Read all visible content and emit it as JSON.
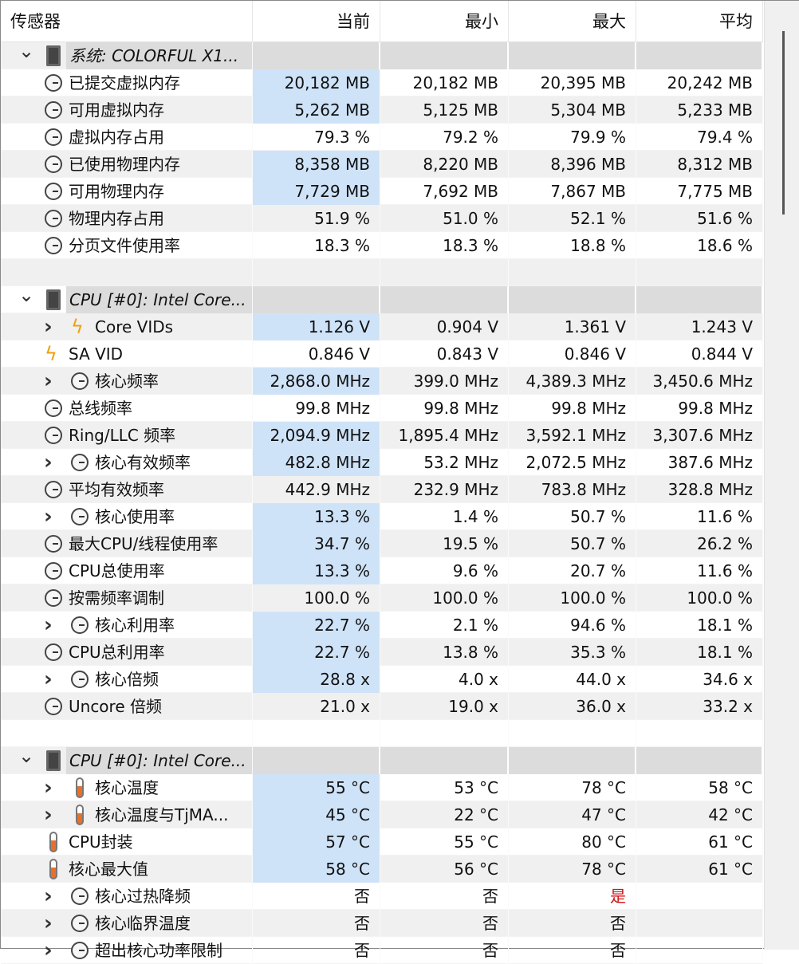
{
  "header": {
    "sensor": "传感器",
    "current": "当前",
    "min": "最小",
    "max": "最大",
    "avg": "平均"
  },
  "colors": {
    "highlight": "#cfe3f8",
    "group": "#dcdcdc",
    "alert": "#d01010"
  },
  "rows": [
    {
      "type": "group",
      "label": "系统: COLORFUL X1..."
    },
    {
      "label": "已提交虚拟内存",
      "icon": "clock",
      "hl": true,
      "v": [
        "20,182 MB",
        "20,182 MB",
        "20,395 MB",
        "20,242 MB"
      ]
    },
    {
      "label": "可用虚拟内存",
      "icon": "clock",
      "hl": true,
      "v": [
        "5,262 MB",
        "5,125 MB",
        "5,304 MB",
        "5,233 MB"
      ]
    },
    {
      "label": "虚拟内存占用",
      "icon": "clock",
      "v": [
        "79.3 %",
        "79.2 %",
        "79.9 %",
        "79.4 %"
      ]
    },
    {
      "label": "已使用物理内存",
      "icon": "clock",
      "hl": true,
      "v": [
        "8,358 MB",
        "8,220 MB",
        "8,396 MB",
        "8,312 MB"
      ]
    },
    {
      "label": "可用物理内存",
      "icon": "clock",
      "hl": true,
      "v": [
        "7,729 MB",
        "7,692 MB",
        "7,867 MB",
        "7,775 MB"
      ]
    },
    {
      "label": "物理内存占用",
      "icon": "clock",
      "v": [
        "51.9 %",
        "51.0 %",
        "52.1 %",
        "51.6 %"
      ]
    },
    {
      "label": "分页文件使用率",
      "icon": "clock",
      "v": [
        "18.3 %",
        "18.3 %",
        "18.8 %",
        "18.6 %"
      ]
    },
    {
      "type": "empty"
    },
    {
      "type": "group",
      "label": "CPU [#0]: Intel Core..."
    },
    {
      "label": "Core VIDs",
      "icon": "bolt",
      "exp": true,
      "hl": true,
      "v": [
        "1.126 V",
        "0.904 V",
        "1.361 V",
        "1.243 V"
      ]
    },
    {
      "label": "SA VID",
      "icon": "bolt",
      "v": [
        "0.846 V",
        "0.843 V",
        "0.846 V",
        "0.844 V"
      ]
    },
    {
      "label": "核心频率",
      "icon": "clock",
      "exp": true,
      "hl": true,
      "v": [
        "2,868.0 MHz",
        "399.0 MHz",
        "4,389.3 MHz",
        "3,450.6 MHz"
      ]
    },
    {
      "label": "总线频率",
      "icon": "clock",
      "v": [
        "99.8 MHz",
        "99.8 MHz",
        "99.8 MHz",
        "99.8 MHz"
      ]
    },
    {
      "label": "Ring/LLC 频率",
      "icon": "clock",
      "hl": true,
      "v": [
        "2,094.9 MHz",
        "1,895.4 MHz",
        "3,592.1 MHz",
        "3,307.6 MHz"
      ]
    },
    {
      "label": "核心有效频率",
      "icon": "clock",
      "exp": true,
      "hl": true,
      "v": [
        "482.8 MHz",
        "53.2 MHz",
        "2,072.5 MHz",
        "387.6 MHz"
      ]
    },
    {
      "label": "平均有效频率",
      "icon": "clock",
      "v": [
        "442.9 MHz",
        "232.9 MHz",
        "783.8 MHz",
        "328.8 MHz"
      ]
    },
    {
      "label": "核心使用率",
      "icon": "clock",
      "exp": true,
      "hl": true,
      "v": [
        "13.3 %",
        "1.4 %",
        "50.7 %",
        "11.6 %"
      ]
    },
    {
      "label": "最大CPU/线程使用率",
      "icon": "clock",
      "hl": true,
      "v": [
        "34.7 %",
        "19.5 %",
        "50.7 %",
        "26.2 %"
      ]
    },
    {
      "label": "CPU总使用率",
      "icon": "clock",
      "hl": true,
      "v": [
        "13.3 %",
        "9.6 %",
        "20.7 %",
        "11.6 %"
      ]
    },
    {
      "label": "按需频率调制",
      "icon": "clock",
      "v": [
        "100.0 %",
        "100.0 %",
        "100.0 %",
        "100.0 %"
      ]
    },
    {
      "label": "核心利用率",
      "icon": "clock",
      "exp": true,
      "hl": true,
      "v": [
        "22.7 %",
        "2.1 %",
        "94.6 %",
        "18.1 %"
      ]
    },
    {
      "label": "CPU总利用率",
      "icon": "clock",
      "hl": true,
      "v": [
        "22.7 %",
        "13.8 %",
        "35.3 %",
        "18.1 %"
      ]
    },
    {
      "label": "核心倍频",
      "icon": "clock",
      "exp": true,
      "hl": true,
      "v": [
        "28.8 x",
        "4.0 x",
        "44.0 x",
        "34.6 x"
      ]
    },
    {
      "label": "Uncore 倍频",
      "icon": "clock",
      "v": [
        "21.0 x",
        "19.0 x",
        "36.0 x",
        "33.2 x"
      ]
    },
    {
      "type": "empty"
    },
    {
      "type": "group",
      "label": "CPU [#0]: Intel Core..."
    },
    {
      "label": "核心温度",
      "icon": "thermo",
      "exp": true,
      "hl": true,
      "v": [
        "55 °C",
        "53 °C",
        "78 °C",
        "58 °C"
      ]
    },
    {
      "label": "核心温度与TjMA...",
      "icon": "thermo",
      "exp": true,
      "hl": true,
      "v": [
        "45 °C",
        "22 °C",
        "47 °C",
        "42 °C"
      ]
    },
    {
      "label": "CPU封装",
      "icon": "thermo",
      "hl": true,
      "v": [
        "57 °C",
        "55 °C",
        "80 °C",
        "61 °C"
      ]
    },
    {
      "label": "核心最大值",
      "icon": "thermo",
      "hl": true,
      "v": [
        "58 °C",
        "56 °C",
        "78 °C",
        "61 °C"
      ]
    },
    {
      "label": "核心过热降频",
      "icon": "clock",
      "exp": true,
      "v": [
        "否",
        "否",
        "是",
        ""
      ],
      "alert": [
        2
      ]
    },
    {
      "label": "核心临界温度",
      "icon": "clock",
      "exp": true,
      "v": [
        "否",
        "否",
        "否",
        ""
      ]
    },
    {
      "label": "超出核心功率限制",
      "icon": "clock",
      "exp": true,
      "v": [
        "否",
        "否",
        "否",
        ""
      ]
    }
  ]
}
